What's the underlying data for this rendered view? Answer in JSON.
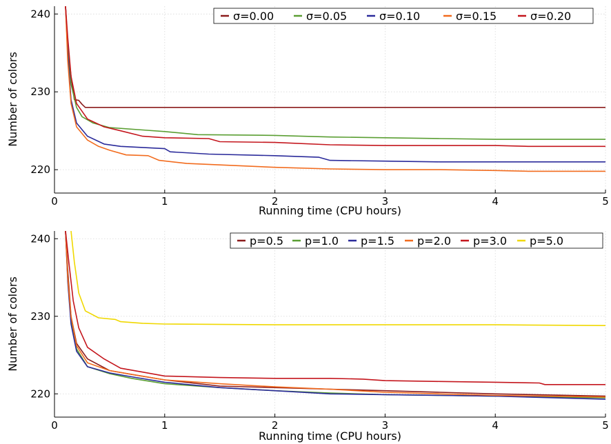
{
  "chart_data": [
    {
      "type": "line",
      "title": "",
      "xlabel": "Running time (CPU hours)",
      "ylabel": "Number of colors",
      "xlim": [
        0,
        5
      ],
      "ylim": [
        217,
        241
      ],
      "xticks": [
        0,
        1,
        2,
        3,
        4,
        5
      ],
      "xtick_labels": [
        "0",
        "1",
        "2",
        "3",
        "4",
        "5"
      ],
      "yticks": [
        220,
        230,
        240
      ],
      "ytick_labels": [
        "220",
        "230",
        "240"
      ],
      "grid": true,
      "legend_position": "top-right",
      "series": [
        {
          "name": "σ=0.00",
          "color": "#8b1a1a",
          "points": [
            [
              0.1,
              241
            ],
            [
              0.12,
              236
            ],
            [
              0.15,
              232
            ],
            [
              0.18,
              229
            ],
            [
              0.22,
              228.9
            ],
            [
              0.25,
              228.4
            ],
            [
              0.28,
              228
            ],
            [
              1,
              228
            ],
            [
              3,
              228
            ],
            [
              5,
              228
            ]
          ]
        },
        {
          "name": "σ=0.05",
          "color": "#5a9e32",
          "points": [
            [
              0.1,
              241
            ],
            [
              0.12,
              236
            ],
            [
              0.15,
              231
            ],
            [
              0.2,
              228
            ],
            [
              0.25,
              226.8
            ],
            [
              0.35,
              226
            ],
            [
              0.5,
              225.4
            ],
            [
              0.8,
              225.1
            ],
            [
              1,
              224.9
            ],
            [
              1.3,
              224.5
            ],
            [
              2,
              224.4
            ],
            [
              2.5,
              224.2
            ],
            [
              3,
              224.1
            ],
            [
              3.5,
              224
            ],
            [
              4,
              223.9
            ],
            [
              5,
              223.9
            ]
          ]
        },
        {
          "name": "σ=0.10",
          "color": "#2a2a9a",
          "points": [
            [
              0.1,
              241
            ],
            [
              0.12,
              235
            ],
            [
              0.15,
              229
            ],
            [
              0.2,
              226
            ],
            [
              0.3,
              224.3
            ],
            [
              0.45,
              223.3
            ],
            [
              0.6,
              223
            ],
            [
              1,
              222.7
            ],
            [
              1.05,
              222.3
            ],
            [
              1.4,
              222
            ],
            [
              2,
              221.8
            ],
            [
              2.4,
              221.6
            ],
            [
              2.5,
              221.2
            ],
            [
              3,
              221.1
            ],
            [
              3.5,
              221
            ],
            [
              4,
              221
            ],
            [
              5,
              221
            ]
          ]
        },
        {
          "name": "σ=0.15",
          "color": "#f26b1d",
          "points": [
            [
              0.1,
              241
            ],
            [
              0.12,
              234
            ],
            [
              0.15,
              228.5
            ],
            [
              0.2,
              225.5
            ],
            [
              0.3,
              223.8
            ],
            [
              0.4,
              223
            ],
            [
              0.5,
              222.5
            ],
            [
              0.65,
              221.9
            ],
            [
              0.85,
              221.8
            ],
            [
              0.95,
              221.2
            ],
            [
              1.2,
              220.8
            ],
            [
              2,
              220.3
            ],
            [
              2.5,
              220.1
            ],
            [
              3,
              220
            ],
            [
              3.5,
              220
            ],
            [
              4,
              219.9
            ],
            [
              4.3,
              219.8
            ],
            [
              5,
              219.8
            ]
          ]
        },
        {
          "name": "σ=0.20",
          "color": "#c4151c",
          "points": [
            [
              0.1,
              241
            ],
            [
              0.12,
              237
            ],
            [
              0.15,
              232
            ],
            [
              0.2,
              228.5
            ],
            [
              0.3,
              226.5
            ],
            [
              0.45,
              225.5
            ],
            [
              0.6,
              225
            ],
            [
              0.8,
              224.3
            ],
            [
              1,
              224.1
            ],
            [
              1.4,
              224
            ],
            [
              1.5,
              223.6
            ],
            [
              2,
              223.5
            ],
            [
              2.5,
              223.2
            ],
            [
              3,
              223.1
            ],
            [
              3.5,
              223.1
            ],
            [
              4,
              223.1
            ],
            [
              4.3,
              223
            ],
            [
              5,
              223
            ]
          ]
        }
      ]
    },
    {
      "type": "line",
      "title": "",
      "xlabel": "Running time (CPU hours)",
      "ylabel": "Number of colors",
      "xlim": [
        0,
        5
      ],
      "ylim": [
        217,
        241
      ],
      "xticks": [
        0,
        1,
        2,
        3,
        4,
        5
      ],
      "xtick_labels": [
        "0",
        "1",
        "2",
        "3",
        "4",
        "5"
      ],
      "yticks": [
        220,
        230,
        240
      ],
      "ytick_labels": [
        "220",
        "230",
        "240"
      ],
      "grid": true,
      "legend_position": "top-right",
      "series": [
        {
          "name": "p=0.5",
          "color": "#8b1a1a",
          "points": [
            [
              0.1,
              241
            ],
            [
              0.12,
              236
            ],
            [
              0.15,
              230
            ],
            [
              0.2,
              226.5
            ],
            [
              0.3,
              224.5
            ],
            [
              0.5,
              223
            ],
            [
              0.7,
              222.5
            ],
            [
              1,
              221.8
            ],
            [
              1.5,
              221
            ],
            [
              2,
              220.8
            ],
            [
              2.5,
              220.6
            ],
            [
              3,
              220.4
            ],
            [
              3.5,
              220.2
            ],
            [
              4,
              220
            ],
            [
              5,
              219.7
            ]
          ]
        },
        {
          "name": "p=1.0",
          "color": "#5a9e32",
          "points": [
            [
              0.1,
              241
            ],
            [
              0.12,
              235
            ],
            [
              0.15,
              229.5
            ],
            [
              0.2,
              225.8
            ],
            [
              0.3,
              223.5
            ],
            [
              0.5,
              222.6
            ],
            [
              0.7,
              222
            ],
            [
              1,
              221.3
            ],
            [
              1.5,
              220.8
            ],
            [
              2,
              220.4
            ],
            [
              2.5,
              220.1
            ],
            [
              3,
              219.9
            ],
            [
              3.5,
              219.8
            ],
            [
              4,
              219.7
            ],
            [
              5,
              219.5
            ]
          ]
        },
        {
          "name": "p=1.5",
          "color": "#2a2a9a",
          "points": [
            [
              0.1,
              241
            ],
            [
              0.12,
              234.5
            ],
            [
              0.15,
              229
            ],
            [
              0.2,
              225.5
            ],
            [
              0.3,
              223.5
            ],
            [
              0.5,
              222.7
            ],
            [
              0.7,
              222.2
            ],
            [
              1,
              221.5
            ],
            [
              1.5,
              220.8
            ],
            [
              2,
              220.4
            ],
            [
              2.5,
              220
            ],
            [
              3,
              219.9
            ],
            [
              3.5,
              219.8
            ],
            [
              4,
              219.7
            ],
            [
              5,
              219.3
            ]
          ]
        },
        {
          "name": "p=2.0",
          "color": "#f26b1d",
          "points": [
            [
              0.1,
              241
            ],
            [
              0.12,
              235
            ],
            [
              0.15,
              230
            ],
            [
              0.2,
              226.2
            ],
            [
              0.3,
              224
            ],
            [
              0.5,
              223
            ],
            [
              0.7,
              222.5
            ],
            [
              1,
              221.8
            ],
            [
              1.5,
              221.3
            ],
            [
              2,
              220.9
            ],
            [
              2.5,
              220.6
            ],
            [
              3,
              220.2
            ],
            [
              3.5,
              220
            ],
            [
              4,
              219.8
            ],
            [
              5,
              219.6
            ]
          ]
        },
        {
          "name": "p=3.0",
          "color": "#c4151c",
          "points": [
            [
              0.1,
              241
            ],
            [
              0.13,
              237
            ],
            [
              0.17,
              232
            ],
            [
              0.22,
              228.5
            ],
            [
              0.3,
              226
            ],
            [
              0.45,
              224.5
            ],
            [
              0.6,
              223.3
            ],
            [
              0.8,
              222.8
            ],
            [
              1,
              222.3
            ],
            [
              1.5,
              222.1
            ],
            [
              2,
              222
            ],
            [
              2.5,
              222
            ],
            [
              2.8,
              221.9
            ],
            [
              3,
              221.7
            ],
            [
              3.5,
              221.6
            ],
            [
              4,
              221.5
            ],
            [
              4.4,
              221.4
            ],
            [
              4.45,
              221.2
            ],
            [
              5,
              221.2
            ]
          ]
        },
        {
          "name": "p=5.0",
          "color": "#f0d800",
          "points": [
            [
              0.15,
              241
            ],
            [
              0.18,
              237
            ],
            [
              0.22,
              233
            ],
            [
              0.28,
              230.7
            ],
            [
              0.4,
              229.8
            ],
            [
              0.55,
              229.6
            ],
            [
              0.6,
              229.3
            ],
            [
              0.8,
              229.1
            ],
            [
              1,
              229
            ],
            [
              2,
              228.9
            ],
            [
              3,
              228.9
            ],
            [
              4,
              228.9
            ],
            [
              5,
              228.8
            ]
          ]
        }
      ]
    }
  ]
}
